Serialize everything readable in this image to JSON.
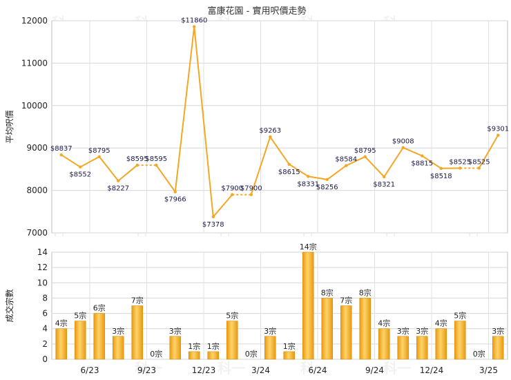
{
  "title": "富康花園 - 實用呎價走勢",
  "watermark": "科一",
  "chart_data": [
    {
      "type": "line",
      "ylabel": "平均呎價",
      "ylim": [
        7000,
        12000
      ],
      "yticks": [
        7000,
        8000,
        9000,
        10000,
        11000,
        12000
      ],
      "grid": true,
      "line_color": "#F5A623",
      "labels": [
        "$8837",
        "$8552",
        "$8795",
        "$8227",
        "$8595",
        "$8595",
        "$7966",
        "$11860",
        "$7378",
        "$7900",
        "$7900",
        "$9263",
        "$8615",
        "$8331",
        "$8256",
        "$8584",
        "$8795",
        "$8321",
        "$9008",
        "$8815",
        "$8518",
        "$8525",
        "$8525",
        "$9301"
      ],
      "values": [
        8837,
        8552,
        8795,
        8227,
        8595,
        8595,
        7966,
        11860,
        7378,
        7900,
        7900,
        9263,
        8615,
        8331,
        8256,
        8584,
        8795,
        8321,
        9008,
        8815,
        8518,
        8525,
        8525,
        9301
      ],
      "gap_after_index": [
        4,
        9,
        21
      ]
    },
    {
      "type": "bar",
      "ylabel": "成交宗數",
      "ylim": [
        0,
        14
      ],
      "yticks": [
        0,
        2,
        4,
        6,
        8,
        10,
        12,
        14
      ],
      "x_tick_labels": [
        "6/23",
        "9/23",
        "12/23",
        "3/24",
        "6/24",
        "9/24",
        "12/24",
        "3/25"
      ],
      "bar_color": "#F5B42A",
      "labels": [
        "4宗",
        "5宗",
        "6宗",
        "3宗",
        "7宗",
        "0宗",
        "3宗",
        "1宗",
        "1宗",
        "5宗",
        "0宗",
        "3宗",
        "1宗",
        "14宗",
        "8宗",
        "7宗",
        "8宗",
        "4宗",
        "3宗",
        "3宗",
        "4宗",
        "5宗",
        "0宗",
        "3宗"
      ],
      "values": [
        4,
        5,
        6,
        3,
        7,
        0,
        3,
        1,
        1,
        5,
        0,
        3,
        1,
        14,
        8,
        7,
        8,
        4,
        3,
        3,
        4,
        5,
        0,
        3
      ]
    }
  ]
}
